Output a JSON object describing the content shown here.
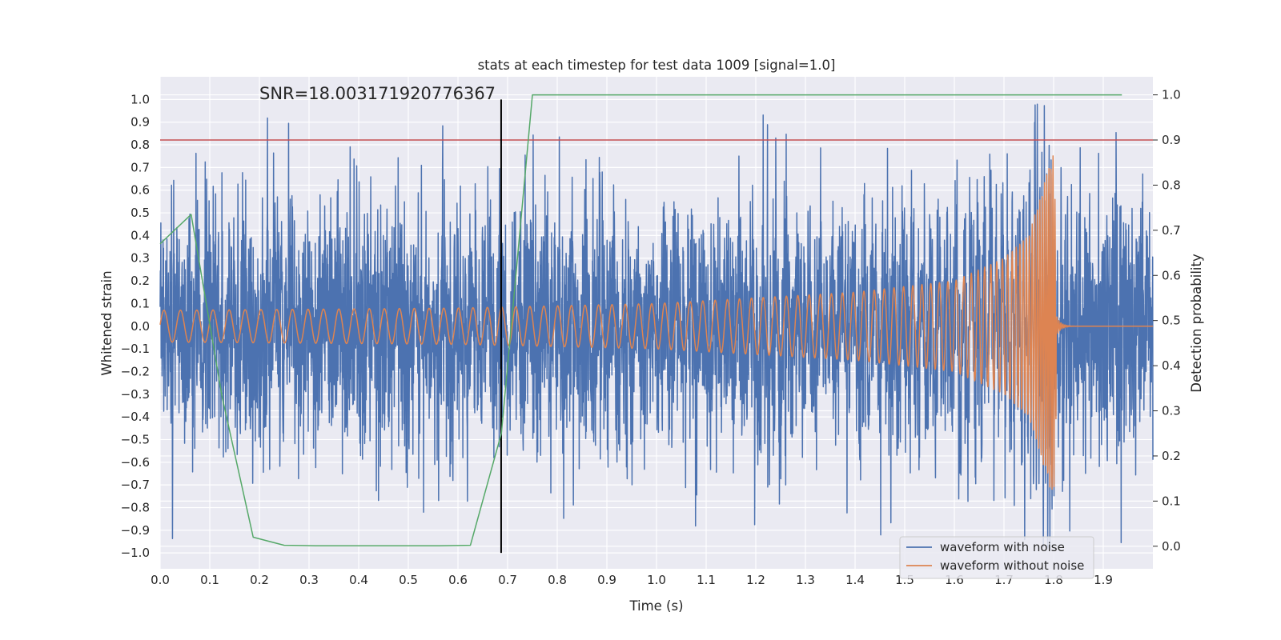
{
  "chart_data": {
    "type": "line",
    "title": "stats at each timestep for test data 1009 [signal=1.0]",
    "xlabel": "Time (s)",
    "ylabel": "Whitened strain",
    "y2label": "Detection probability",
    "xlim": [
      0.0,
      2.0
    ],
    "ylim": [
      -1.07,
      1.1
    ],
    "y2lim": [
      -0.05,
      1.04
    ],
    "x_ticks": [
      0.0,
      0.1,
      0.2,
      0.3,
      0.4,
      0.5,
      0.6,
      0.7,
      0.8,
      0.9,
      1.0,
      1.1,
      1.2,
      1.3,
      1.4,
      1.5,
      1.6,
      1.7,
      1.8,
      1.9
    ],
    "x_tick_labels": [
      "0.0",
      "0.1",
      "0.2",
      "0.3",
      "0.4",
      "0.5",
      "0.6",
      "0.7",
      "0.8",
      "0.9",
      "1.0",
      "1.1",
      "1.2",
      "1.3",
      "1.4",
      "1.5",
      "1.6",
      "1.7",
      "1.8",
      "1.9"
    ],
    "y_ticks": [
      1.0,
      0.9,
      0.8,
      0.7,
      0.6,
      0.5,
      0.4,
      0.3,
      0.2,
      0.1,
      0.0,
      -0.1,
      -0.2,
      -0.3,
      -0.4,
      -0.5,
      -0.6,
      -0.7,
      -0.8,
      -0.9,
      -1.0
    ],
    "y_tick_labels": [
      "1.0",
      "0.9",
      "0.8",
      "0.7",
      "0.6",
      "0.5",
      "0.4",
      "0.3",
      "0.2",
      "0.1",
      "0.0",
      "−0.1",
      "−0.2",
      "−0.3",
      "−0.4",
      "−0.5",
      "−0.6",
      "−0.7",
      "−0.8",
      "−0.9",
      "−1.0"
    ],
    "y2_ticks": [
      1.0,
      0.9,
      0.8,
      0.7,
      0.6,
      0.5,
      0.4,
      0.3,
      0.2,
      0.1,
      0.0
    ],
    "y2_tick_labels": [
      "1.0",
      "0.9",
      "0.8",
      "0.7",
      "0.6",
      "0.5",
      "0.4",
      "0.3",
      "0.2",
      "0.1",
      "0.0"
    ],
    "grid": true,
    "annotation": "SNR=18.003171920776367",
    "threshold_line": {
      "y2": 0.9,
      "color": "#c44e52"
    },
    "marker_line": {
      "x": 0.687,
      "y_range": [
        -1.0,
        1.0
      ],
      "color": "#000000"
    },
    "noisy_waveform": {
      "name": "waveform with noise",
      "color": "#4c72b0",
      "sample_rate": 2048,
      "amplitude_std": 0.27,
      "peak_amplitude": 0.99,
      "xmax": 2.0
    },
    "clean_waveform": {
      "name": "waveform without noise",
      "color": "#dd8452",
      "amplitude_envelope": {
        "t": [
          0.0,
          0.6,
          1.0,
          1.4,
          1.6,
          1.7,
          1.75,
          1.8,
          1.81
        ],
        "amp": [
          0.07,
          0.08,
          0.1,
          0.15,
          0.2,
          0.3,
          0.4,
          0.77,
          0.0
        ]
      },
      "frequency_envelope": {
        "t": [
          0.0,
          0.6,
          1.0,
          1.4,
          1.6,
          1.7,
          1.8
        ],
        "freq": [
          30,
          34,
          38,
          46,
          60,
          90,
          250
        ]
      },
      "merger_time": 1.805
    },
    "probability_series": {
      "name": "detection probability",
      "color": "#55a868",
      "axis": "right",
      "x": [
        0.0,
        0.0625,
        0.125,
        0.1875,
        0.25,
        0.3125,
        0.375,
        0.4375,
        0.5,
        0.5625,
        0.625,
        0.6875,
        0.75,
        0.8125,
        0.875,
        0.9375,
        1.0,
        1.0625,
        1.125,
        1.1875,
        1.25,
        1.3125,
        1.375,
        1.4375,
        1.5,
        1.5625,
        1.625,
        1.6875,
        1.75,
        1.8125,
        1.875,
        1.9375
      ],
      "y": [
        0.67,
        0.735,
        0.33,
        0.02,
        0.002,
        0.001,
        0.001,
        0.001,
        0.001,
        0.001,
        0.002,
        0.25,
        1.0,
        1.0,
        1.0,
        1.0,
        1.0,
        1.0,
        1.0,
        1.0,
        1.0,
        1.0,
        1.0,
        1.0,
        1.0,
        1.0,
        1.0,
        1.0,
        1.0,
        1.0,
        1.0,
        1.0
      ]
    },
    "legend": {
      "position": "lower-right",
      "entries": [
        {
          "label": "waveform with noise",
          "color": "#4c72b0"
        },
        {
          "label": "waveform without noise",
          "color": "#dd8452"
        }
      ]
    },
    "colors": {
      "plot_background": "#eaeaf2",
      "grid": "#ffffff",
      "text": "#262626"
    }
  }
}
